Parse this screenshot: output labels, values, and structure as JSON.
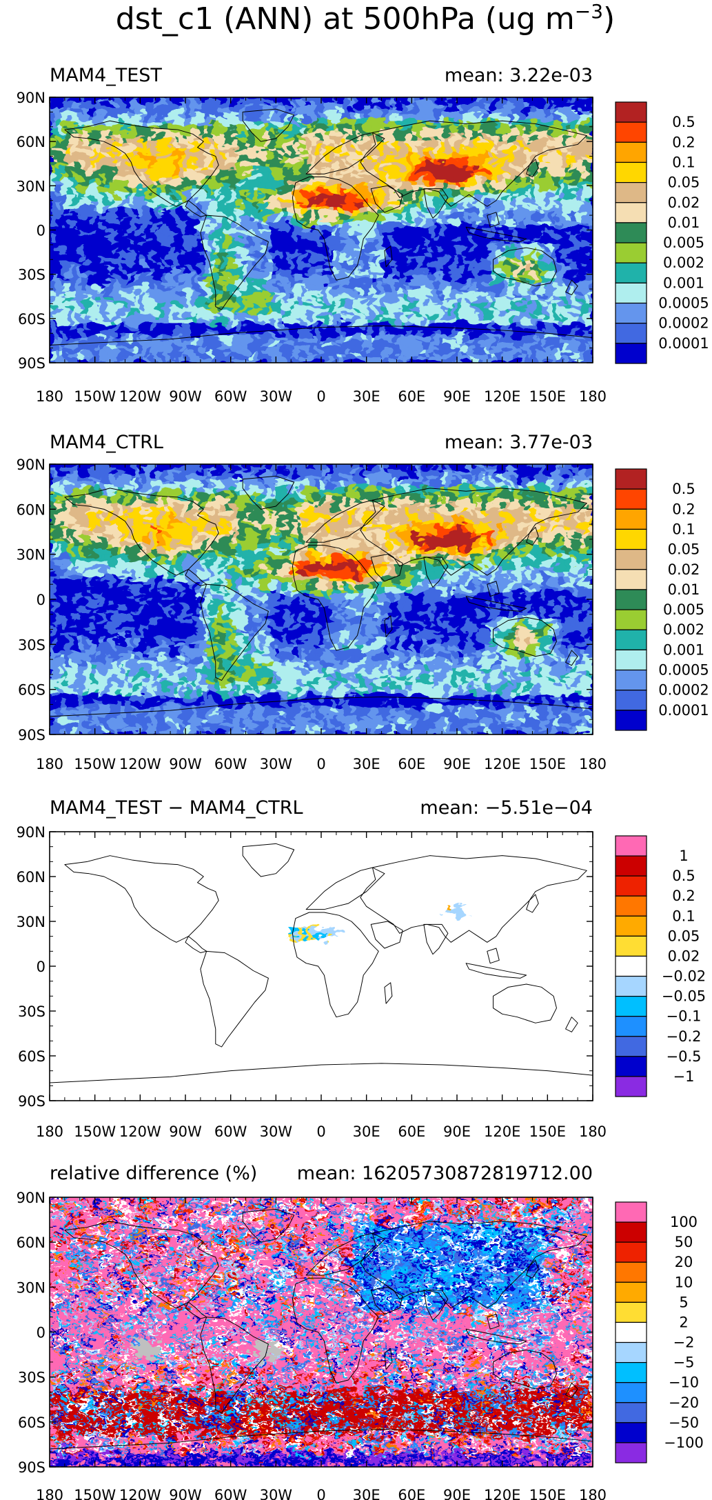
{
  "figure_title": "dst_c1 (ANN) at 500hPa (ug m",
  "figure_title_sup": "−3",
  "figure_title_end": ")",
  "lat_labels": [
    "90N",
    "60N",
    "30N",
    "0",
    "30S",
    "60S",
    "90S"
  ],
  "lon_labels": [
    "180",
    "150W",
    "120W",
    "90W",
    "60W",
    "30W",
    "0",
    "30E",
    "60E",
    "90E",
    "120E",
    "150E",
    "180"
  ],
  "chart_data": [
    {
      "type": "heatmap",
      "title": "MAM4_TEST",
      "mean_text": "mean: 3.22e-03",
      "mean": 0.00322,
      "projection": "cylindrical equidistant",
      "lon_range": [
        -180,
        180
      ],
      "lat_range": [
        -90,
        90
      ],
      "colorbar": {
        "levels": [
          "0.5",
          "0.2",
          "0.1",
          "0.05",
          "0.02",
          "0.01",
          "0.005",
          "0.002",
          "0.001",
          "0.0005",
          "0.0002",
          "0.0001"
        ],
        "colors": [
          "#b22222",
          "#ff4500",
          "#ffa500",
          "#ffd700",
          "#deb887",
          "#f5deb3",
          "#2e8b57",
          "#9acd32",
          "#20b2aa",
          "#afeeee",
          "#6495ed",
          "#4169e1",
          "#0000cd"
        ]
      },
      "features": [
        {
          "name": "Sahara-Arabia core",
          "lon": [
            -15,
            55
          ],
          "lat": [
            8,
            32
          ],
          "color": "#ffd700"
        },
        {
          "name": "Taklimakan/Gobi core",
          "lon": [
            75,
            105
          ],
          "lat": [
            30,
            45
          ],
          "color": "#ffa500"
        },
        {
          "name": "Australian interior",
          "lon": [
            115,
            148
          ],
          "lat": [
            -35,
            -18
          ],
          "color": "#2e8b57"
        }
      ]
    },
    {
      "type": "heatmap",
      "title": "MAM4_CTRL",
      "mean_text": "mean: 3.77e-03",
      "mean": 0.00377,
      "projection": "cylindrical equidistant",
      "lon_range": [
        -180,
        180
      ],
      "lat_range": [
        -90,
        90
      ],
      "colorbar": {
        "levels": [
          "0.5",
          "0.2",
          "0.1",
          "0.05",
          "0.02",
          "0.01",
          "0.005",
          "0.002",
          "0.001",
          "0.0005",
          "0.0002",
          "0.0001"
        ],
        "colors": [
          "#b22222",
          "#ff4500",
          "#ffa500",
          "#ffd700",
          "#deb887",
          "#f5deb3",
          "#2e8b57",
          "#9acd32",
          "#20b2aa",
          "#afeeee",
          "#6495ed",
          "#4169e1",
          "#0000cd"
        ]
      },
      "features": [
        {
          "name": "Sahara-Arabia core",
          "lon": [
            -15,
            55
          ],
          "lat": [
            8,
            32
          ],
          "color": "#ff4500"
        },
        {
          "name": "Taklimakan/Gobi core",
          "lon": [
            75,
            105
          ],
          "lat": [
            30,
            45
          ],
          "color": "#ff4500"
        },
        {
          "name": "Australian interior",
          "lon": [
            115,
            148
          ],
          "lat": [
            -35,
            -18
          ],
          "color": "#2e8b57"
        }
      ]
    },
    {
      "type": "heatmap",
      "title": "MAM4_TEST − MAM4_CTRL",
      "mean_text": "mean: −5.51e−04",
      "mean": -0.000551,
      "projection": "cylindrical equidistant",
      "lon_range": [
        -180,
        180
      ],
      "lat_range": [
        -90,
        90
      ],
      "colorbar": {
        "levels": [
          "1",
          "0.5",
          "0.2",
          "0.1",
          "0.05",
          "0.02",
          "−0.02",
          "−0.05",
          "−0.1",
          "−0.2",
          "−0.5",
          "−1"
        ],
        "colors": [
          "#ff69b4",
          "#cc0000",
          "#ee2200",
          "#ff7700",
          "#ffaa00",
          "#ffdd33",
          "#ffffff",
          "#a6d6ff",
          "#00bfff",
          "#1e90ff",
          "#4169e1",
          "#0000cd",
          "#8a2be2"
        ]
      },
      "features": [
        {
          "name": "North Africa negative",
          "lon": [
            -25,
            10
          ],
          "lat": [
            15,
            28
          ],
          "color": "#a6d6ff"
        },
        {
          "name": "Sahara positive",
          "lon": [
            -15,
            20
          ],
          "lat": [
            18,
            28
          ],
          "color": "#ffd700"
        },
        {
          "name": "Tibet/Taklimakan dipole",
          "lon": [
            75,
            100
          ],
          "lat": [
            33,
            40
          ],
          "color": "#ffaa00"
        }
      ]
    },
    {
      "type": "heatmap",
      "title": "relative difference (%)",
      "mean_text": "mean: 16205730872819712.00",
      "mean": 1.6205730872819712e+16,
      "projection": "cylindrical equidistant",
      "lon_range": [
        -180,
        180
      ],
      "lat_range": [
        -90,
        90
      ],
      "colorbar": {
        "levels": [
          "100",
          "50",
          "20",
          "10",
          "5",
          "2",
          "−2",
          "−5",
          "−10",
          "−20",
          "−50",
          "−100"
        ],
        "colors": [
          "#ff69b4",
          "#cc0000",
          "#ee2200",
          "#ff7700",
          "#ffaa00",
          "#ffdd33",
          "#ffffff",
          "#a6d6ff",
          "#00bfff",
          "#1e90ff",
          "#4169e1",
          "#0000cd",
          "#8a2be2"
        ]
      },
      "features": [
        {
          "name": "Southern Ocean positive band",
          "lon": [
            -180,
            180
          ],
          "lat": [
            -65,
            -40
          ],
          "color": "#cc0000"
        },
        {
          "name": "Eurasia negative",
          "lon": [
            20,
            140
          ],
          "lat": [
            20,
            70
          ],
          "color": "#4169e1"
        },
        {
          "name": "missing (grey) patches",
          "lon": [
            -120,
            -90
          ],
          "lat": [
            -15,
            0
          ],
          "color": "#c0c0c0"
        }
      ]
    }
  ]
}
